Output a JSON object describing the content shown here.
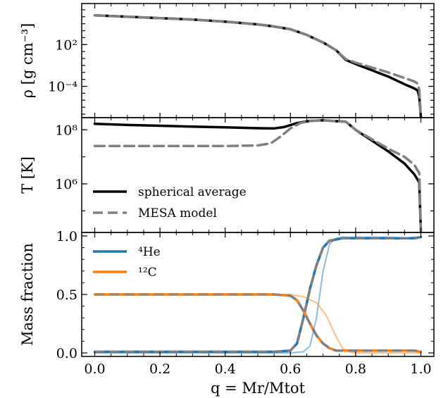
{
  "chart_data": [
    {
      "type": "line",
      "panel": "density",
      "ylabel": "ρ [g cm⁻³]",
      "yscale": "log",
      "xlim": [
        -0.04,
        1.04
      ],
      "ylim_log10": [
        -8.5,
        7.9
      ],
      "yticks": [
        {
          "v": 2,
          "label": "10²"
        },
        {
          "v": -4,
          "label": "10⁻⁴"
        }
      ],
      "series": [
        {
          "name": "spherical average",
          "color": "#000000",
          "style": "solid",
          "x": [
            0.0,
            0.1,
            0.2,
            0.3,
            0.4,
            0.5,
            0.55,
            0.6,
            0.65,
            0.7,
            0.74,
            0.77,
            0.8,
            0.85,
            0.9,
            0.95,
            0.98,
            0.99,
            0.995,
            1.0
          ],
          "log10_y": [
            6.2,
            6.0,
            5.8,
            5.6,
            5.3,
            4.9,
            4.6,
            4.2,
            3.4,
            2.3,
            1.2,
            -0.2,
            -0.8,
            -1.7,
            -2.6,
            -3.7,
            -4.3,
            -4.6,
            -5.5,
            -8.4
          ]
        },
        {
          "name": "MESA model",
          "color": "#808080",
          "style": "dashed",
          "x": [
            0.0,
            0.1,
            0.2,
            0.3,
            0.4,
            0.5,
            0.55,
            0.6,
            0.65,
            0.7,
            0.74,
            0.77,
            0.8,
            0.85,
            0.9,
            0.95,
            0.98,
            0.99,
            0.995,
            1.0
          ],
          "log10_y": [
            6.2,
            6.0,
            5.8,
            5.6,
            5.3,
            4.9,
            4.6,
            4.2,
            3.4,
            2.3,
            1.2,
            -0.1,
            -0.6,
            -1.3,
            -2.0,
            -2.8,
            -3.3,
            -3.6,
            -4.5,
            -8.4
          ]
        }
      ]
    },
    {
      "type": "line",
      "panel": "temperature",
      "ylabel": "T [K]",
      "yscale": "log",
      "xlim": [
        -0.04,
        1.04
      ],
      "ylim_log10": [
        4.2,
        8.45
      ],
      "yticks": [
        {
          "v": 8,
          "label": "10⁸"
        },
        {
          "v": 6,
          "label": "10⁶"
        }
      ],
      "legend_position": "lower-left",
      "series": [
        {
          "name": "spherical average",
          "color": "#000000",
          "style": "solid",
          "x": [
            0.0,
            0.1,
            0.2,
            0.3,
            0.4,
            0.5,
            0.55,
            0.58,
            0.62,
            0.66,
            0.7,
            0.74,
            0.77,
            0.8,
            0.85,
            0.9,
            0.95,
            0.98,
            0.995,
            1.0
          ],
          "log10_y": [
            8.22,
            8.18,
            8.15,
            8.12,
            8.09,
            8.06,
            8.05,
            8.1,
            8.25,
            8.33,
            8.35,
            8.32,
            8.3,
            8.0,
            7.6,
            7.2,
            6.75,
            6.35,
            6.05,
            4.25
          ]
        },
        {
          "name": "MESA model",
          "color": "#808080",
          "style": "dashed",
          "x": [
            0.0,
            0.1,
            0.2,
            0.3,
            0.4,
            0.5,
            0.54,
            0.57,
            0.6,
            0.63,
            0.66,
            0.7,
            0.74,
            0.77,
            0.8,
            0.85,
            0.9,
            0.95,
            0.98,
            0.995,
            1.0
          ],
          "log10_y": [
            7.4,
            7.4,
            7.4,
            7.4,
            7.4,
            7.42,
            7.5,
            7.75,
            8.05,
            8.25,
            8.33,
            8.35,
            8.32,
            8.3,
            8.0,
            7.65,
            7.3,
            7.0,
            6.7,
            6.4,
            4.25
          ]
        }
      ]
    },
    {
      "type": "line",
      "panel": "composition",
      "ylabel": "Mass fraction",
      "xlabel": "q = Mr/Mtot",
      "xlim": [
        -0.04,
        1.04
      ],
      "ylim": [
        -0.03,
        1.03
      ],
      "xticks": [
        "0.0",
        "0.2",
        "0.4",
        "0.6",
        "0.8",
        "1.0"
      ],
      "yticks": [
        "0.0",
        "0.5",
        "1.0"
      ],
      "legend_position": "upper-left",
      "series": [
        {
          "name": "⁴He",
          "color": "#1f77b4",
          "x": [
            0.0,
            0.2,
            0.4,
            0.55,
            0.6,
            0.62,
            0.64,
            0.66,
            0.68,
            0.7,
            0.72,
            0.74,
            0.76,
            0.8,
            0.9,
            0.95,
            0.98,
            1.0
          ],
          "y": [
            0.01,
            0.01,
            0.01,
            0.01,
            0.02,
            0.08,
            0.3,
            0.55,
            0.75,
            0.9,
            0.96,
            0.97,
            0.98,
            0.98,
            0.98,
            0.98,
            0.98,
            0.99
          ]
        },
        {
          "name": "¹²C",
          "color": "#ff7f0e",
          "x": [
            0.0,
            0.2,
            0.4,
            0.55,
            0.6,
            0.62,
            0.64,
            0.66,
            0.68,
            0.7,
            0.72,
            0.74,
            0.76,
            0.8,
            0.9,
            0.95,
            0.98,
            1.0
          ],
          "y": [
            0.5,
            0.5,
            0.5,
            0.5,
            0.49,
            0.45,
            0.36,
            0.25,
            0.15,
            0.08,
            0.04,
            0.02,
            0.02,
            0.02,
            0.02,
            0.02,
            0.02,
            0.01
          ]
        },
        {
          "name": "",
          "color": "#1f77b4",
          "style": "faint",
          "x": [
            0.0,
            0.4,
            0.6,
            0.64,
            0.66,
            0.68,
            0.7,
            0.72,
            0.74,
            0.76,
            0.8,
            0.9,
            0.95,
            0.98,
            1.0
          ],
          "y": [
            0.0,
            0.0,
            0.0,
            0.01,
            0.06,
            0.3,
            0.7,
            0.93,
            0.98,
            0.99,
            0.99,
            0.99,
            0.98,
            0.99,
            0.99
          ]
        },
        {
          "name": "",
          "color": "#ff7f0e",
          "style": "faint",
          "x": [
            0.0,
            0.4,
            0.6,
            0.64,
            0.68,
            0.71,
            0.74,
            0.76,
            0.78,
            0.8,
            0.9,
            1.0
          ],
          "y": [
            0.5,
            0.5,
            0.5,
            0.48,
            0.43,
            0.32,
            0.14,
            0.04,
            0.01,
            0.0,
            0.0,
            0.0
          ]
        }
      ]
    }
  ],
  "legend": {
    "temperature": [
      {
        "label": "spherical average",
        "color": "#000000",
        "style": "solid"
      },
      {
        "label": "MESA model",
        "color": "#808080",
        "style": "dashed"
      }
    ],
    "composition": [
      {
        "label": "⁴He",
        "color": "#1f77b4"
      },
      {
        "label": "¹²C",
        "color": "#ff7f0e"
      }
    ]
  }
}
